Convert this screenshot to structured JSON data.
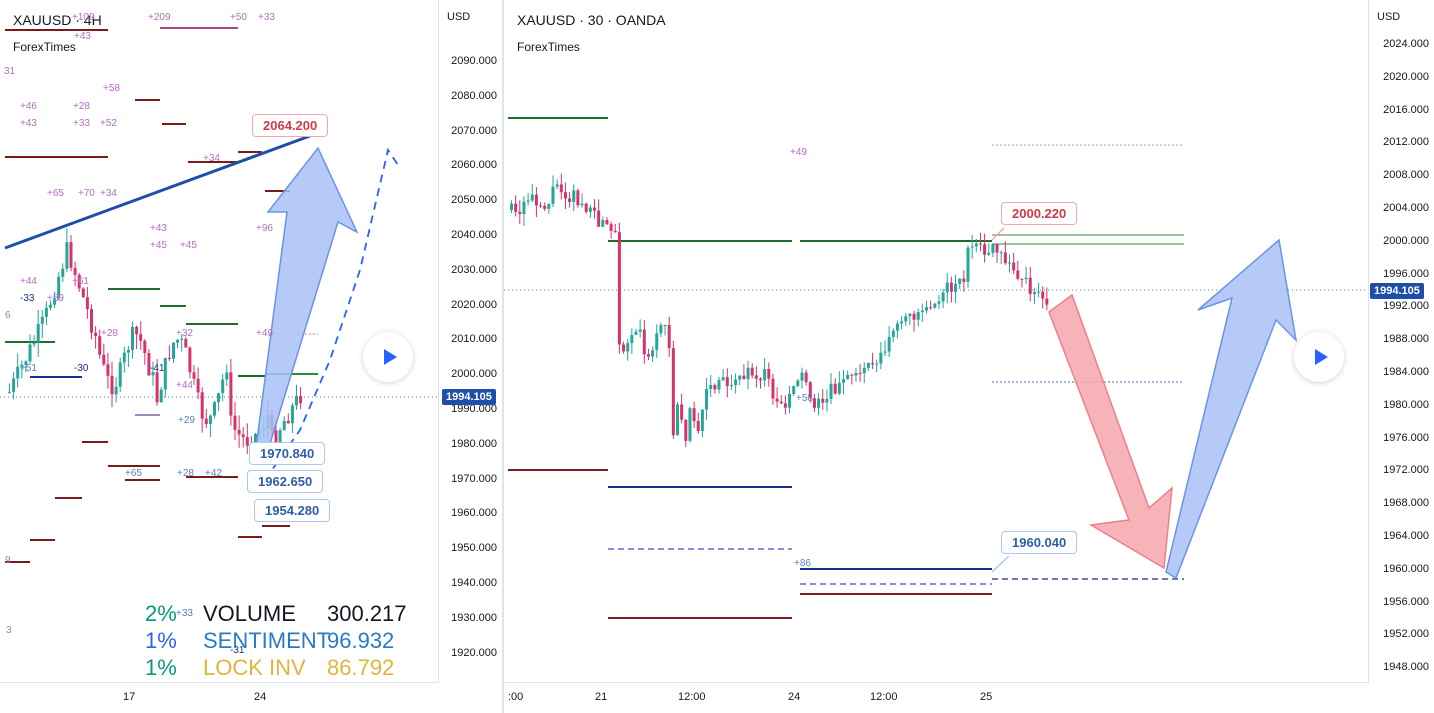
{
  "left_chart": {
    "title": "XAUUSD · 4H",
    "subtitle": "ForexTimes",
    "currency": "USD",
    "price_labels": [
      "2090.000",
      "2080.000",
      "2070.000",
      "2060.000",
      "2050.000",
      "2040.000",
      "2030.000",
      "2020.000",
      "2010.000",
      "2000.000",
      "1990.000",
      "1980.000",
      "1970.000",
      "1960.000",
      "1950.000",
      "1940.000",
      "1930.000",
      "1920.000"
    ],
    "last_price": "1994.105",
    "time_labels": [
      "17",
      "24"
    ],
    "callouts": {
      "resistance": "2064.200",
      "support1": "1970.840",
      "support2": "1962.650",
      "support3": "1954.280"
    },
    "small_labels": [
      "+109",
      "+43",
      "+209",
      "+50",
      "+33",
      "+58",
      "+46",
      "+28",
      "+43",
      "+33",
      "+52",
      "+34",
      "+65",
      "+70",
      "+34",
      "+43",
      "+45",
      "+45",
      "+96",
      "+44",
      "-33",
      "+59",
      "+61",
      "+49",
      "+28",
      "+32",
      "+44",
      "-30",
      "+51",
      "-41",
      "+29",
      "+65",
      "+28",
      "+42",
      "+33",
      "-31",
      "9",
      "3",
      "6",
      "31"
    ],
    "stats": [
      {
        "pct": "2%",
        "label": "VOLUME",
        "value": "300.217",
        "pct_color": "#089981",
        "text_color": "#131722"
      },
      {
        "pct": "1%",
        "label": "SENTIMENT",
        "value": "96.932",
        "pct_color": "#2962ff",
        "text_color": "#2a7bc4"
      },
      {
        "pct": "1%",
        "label": "LOCK INV",
        "value": "86.792",
        "pct_color": "#089981",
        "text_color": "#e0b53a"
      }
    ]
  },
  "right_chart": {
    "title": "XAUUSD · 30 · OANDA",
    "subtitle": "ForexTimes",
    "currency": "USD",
    "price_labels": [
      "2024.000",
      "2020.000",
      "2016.000",
      "2012.000",
      "2008.000",
      "2004.000",
      "2000.000",
      "1996.000",
      "1992.000",
      "1988.000",
      "1984.000",
      "1980.000",
      "1976.000",
      "1972.000",
      "1968.000",
      "1964.000",
      "1960.000",
      "1956.000",
      "1952.000",
      "1948.000"
    ],
    "last_price": "1994.105",
    "time_labels": [
      ":00",
      "21",
      "12:00",
      "24",
      "12:00",
      "25"
    ],
    "callouts": {
      "top": "2000.220",
      "bottom": "1960.040"
    },
    "small_labels": [
      "+49",
      "+58",
      "+86"
    ]
  },
  "colors": {
    "up": "#26a69a",
    "down": "#d6336c",
    "trend": "#1e4fa8",
    "arrow_blue": "#a8c1f5",
    "arrow_red": "#f5a7ad"
  }
}
